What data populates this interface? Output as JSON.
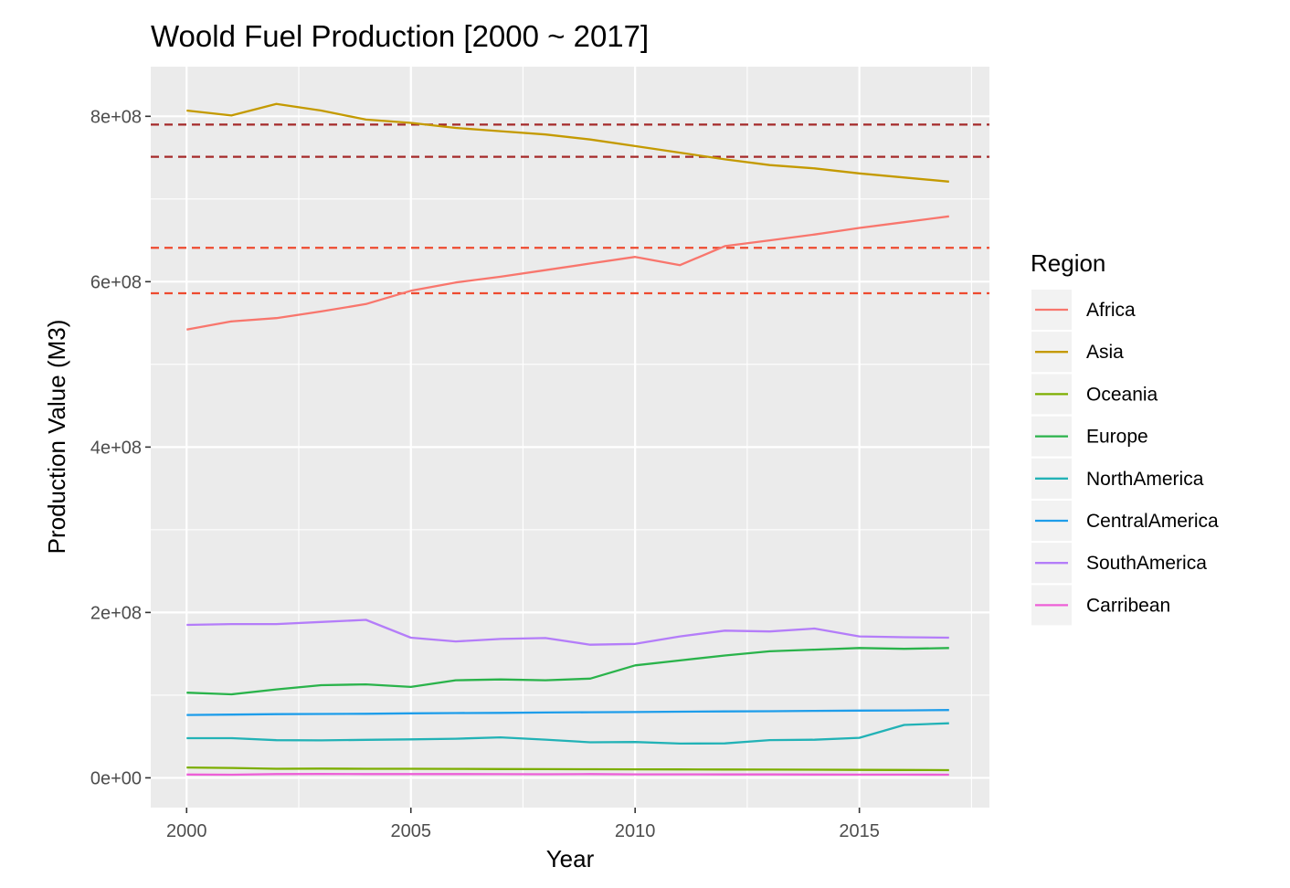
{
  "chart_data": {
    "type": "line",
    "title": "Woold Fuel Production [2000 ~ 2017]",
    "xlabel": "Year",
    "ylabel": "Production Value (M3)",
    "xlim": [
      1999.2,
      2017.9
    ],
    "ylim": [
      -36000000.0,
      860000000.0
    ],
    "x_ticks": [
      2000,
      2005,
      2010,
      2015
    ],
    "x_tick_labels": [
      "2000",
      "2005",
      "2010",
      "2015"
    ],
    "x_minor": [
      2002.5,
      2007.5,
      2012.5,
      2017.5
    ],
    "y_ticks": [
      0,
      200000000,
      400000000,
      600000000,
      800000000
    ],
    "y_tick_labels": [
      "0e+00",
      "2e+08",
      "4e+08",
      "6e+08",
      "8e+08"
    ],
    "y_minor": [
      100000000,
      300000000,
      500000000,
      700000000
    ],
    "grid": true,
    "x": [
      2000,
      2001,
      2002,
      2003,
      2004,
      2005,
      2006,
      2007,
      2008,
      2009,
      2010,
      2011,
      2012,
      2013,
      2014,
      2015,
      2016,
      2017
    ],
    "series": [
      {
        "name": "Africa",
        "color": "#F8766D",
        "values": [
          542000000,
          552000000,
          556000000,
          564000000,
          573000000,
          589000000,
          599000000,
          606000000,
          614000000,
          622000000,
          630000000,
          620000000,
          643000000,
          650000000,
          657000000,
          665000000,
          672000000,
          679000000
        ]
      },
      {
        "name": "Asia",
        "color": "#C49A00",
        "values": [
          807000000,
          801000000,
          815000000,
          807000000,
          796000000,
          792000000,
          786000000,
          782000000,
          778000000,
          772000000,
          764000000,
          756000000,
          748000000,
          741000000,
          737000000,
          731000000,
          726000000,
          721000000
        ]
      },
      {
        "name": "Oceania",
        "color": "#7CAE00",
        "values": [
          12500000,
          12000000,
          11000000,
          11200000,
          11000000,
          11000000,
          10800000,
          10600000,
          10500000,
          10400000,
          10300000,
          10200000,
          10100000,
          10000000,
          9900000,
          9600000,
          9500000,
          9300000
        ]
      },
      {
        "name": "Europe",
        "color": "#2AB34B",
        "values": [
          103000000,
          101000000,
          107000000,
          112000000,
          113000000,
          110000000,
          118000000,
          119000000,
          118000000,
          120000000,
          136000000,
          142000000,
          148000000,
          153000000,
          155000000,
          157000000,
          156000000,
          157000000
        ]
      },
      {
        "name": "NorthAmerica",
        "color": "#22B2B6",
        "values": [
          48000000,
          48000000,
          45500000,
          45300000,
          46000000,
          46500000,
          47300000,
          49000000,
          46200000,
          43000000,
          43300000,
          41500000,
          41700000,
          45600000,
          46100000,
          48400000,
          64000000,
          66000000
        ]
      },
      {
        "name": "CentralAmerica",
        "color": "#1E9DEA",
        "values": [
          76000000,
          76500000,
          77000000,
          77200000,
          77500000,
          78000000,
          78300000,
          78600000,
          79000000,
          79300000,
          79600000,
          80000000,
          80300000,
          80600000,
          81000000,
          81300000,
          81600000,
          82000000
        ]
      },
      {
        "name": "SouthAmerica",
        "color": "#B47DF9",
        "values": [
          185000000,
          186000000,
          186000000,
          188500000,
          191000000,
          169500000,
          165000000,
          168000000,
          169000000,
          161000000,
          162000000,
          171000000,
          178000000,
          177000000,
          180500000,
          171000000,
          170000000,
          169500000
        ]
      },
      {
        "name": "Carribean",
        "color": "#ED5FD7",
        "values": [
          4000000,
          3800000,
          4600000,
          4700000,
          4500000,
          4500000,
          4500000,
          4400000,
          4300000,
          4500000,
          4200000,
          4200000,
          4100000,
          4100000,
          4000000,
          3900000,
          3900000,
          3800000
        ]
      }
    ],
    "reference_lines": [
      {
        "y": 790000000,
        "color": "#A52A2A",
        "style": "dashed"
      },
      {
        "y": 751000000,
        "color": "#A52A2A",
        "style": "dashed"
      },
      {
        "y": 641000000,
        "color": "#EE4A2F",
        "style": "dashed"
      },
      {
        "y": 586000000,
        "color": "#EE4A2F",
        "style": "dashed"
      }
    ],
    "legend": {
      "title": "Region",
      "position": "right"
    },
    "panel_background": "#EBEBEB",
    "gridline_color": "#FFFFFF"
  }
}
